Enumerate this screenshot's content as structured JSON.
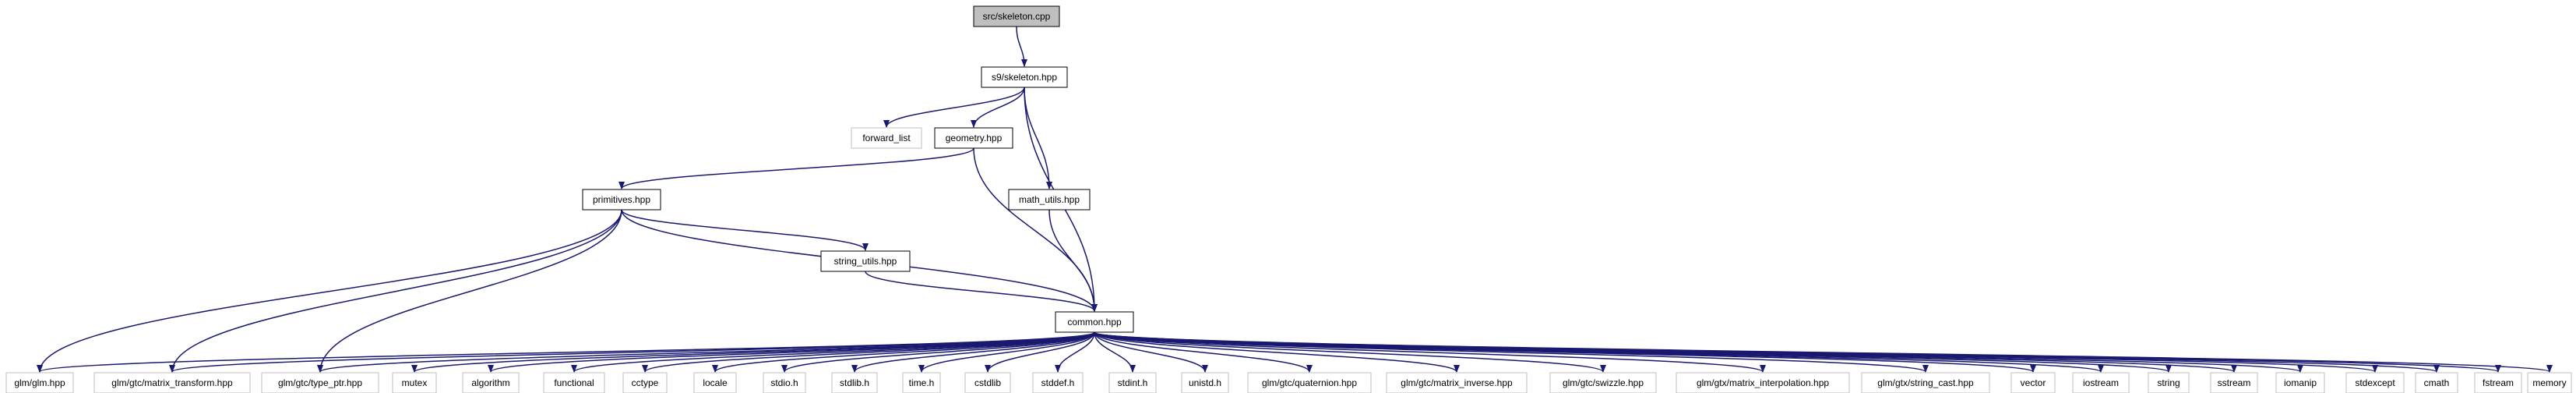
{
  "graph": {
    "colors": {
      "edge": "#191970",
      "node_border": "#000000",
      "external_border": "#bfbfbf",
      "root_fill": "#bfbfbf",
      "node_fill": "#ffffff"
    },
    "nodes": [
      {
        "id": "skeleton_cpp",
        "label": "src/skeleton.cpp",
        "kind": "root"
      },
      {
        "id": "s9skeleton",
        "label": "s9/skeleton.hpp",
        "kind": "local"
      },
      {
        "id": "forward_list",
        "label": "forward_list",
        "kind": "external"
      },
      {
        "id": "geometry",
        "label": "geometry.hpp",
        "kind": "local"
      },
      {
        "id": "primitives",
        "label": "primitives.hpp",
        "kind": "local"
      },
      {
        "id": "math_utils",
        "label": "math_utils.hpp",
        "kind": "local"
      },
      {
        "id": "string_utils",
        "label": "string_utils.hpp",
        "kind": "local"
      },
      {
        "id": "common",
        "label": "common.hpp",
        "kind": "local"
      },
      {
        "id": "glm",
        "label": "glm/glm.hpp",
        "kind": "external"
      },
      {
        "id": "matrix_transform",
        "label": "glm/gtc/matrix_transform.hpp",
        "kind": "external"
      },
      {
        "id": "type_ptr",
        "label": "glm/gtc/type_ptr.hpp",
        "kind": "external"
      },
      {
        "id": "mutex",
        "label": "mutex",
        "kind": "external"
      },
      {
        "id": "algorithm",
        "label": "algorithm",
        "kind": "external"
      },
      {
        "id": "functional",
        "label": "functional",
        "kind": "external"
      },
      {
        "id": "cctype",
        "label": "cctype",
        "kind": "external"
      },
      {
        "id": "locale",
        "label": "locale",
        "kind": "external"
      },
      {
        "id": "stdio",
        "label": "stdio.h",
        "kind": "external"
      },
      {
        "id": "stdlib",
        "label": "stdlib.h",
        "kind": "external"
      },
      {
        "id": "time",
        "label": "time.h",
        "kind": "external"
      },
      {
        "id": "cstdlib",
        "label": "cstdlib",
        "kind": "external"
      },
      {
        "id": "stddef",
        "label": "stddef.h",
        "kind": "external"
      },
      {
        "id": "stdint",
        "label": "stdint.h",
        "kind": "external"
      },
      {
        "id": "unistd",
        "label": "unistd.h",
        "kind": "external"
      },
      {
        "id": "quaternion",
        "label": "glm/gtc/quaternion.hpp",
        "kind": "external"
      },
      {
        "id": "matrix_inverse",
        "label": "glm/gtc/matrix_inverse.hpp",
        "kind": "external"
      },
      {
        "id": "swizzle",
        "label": "glm/gtc/swizzle.hpp",
        "kind": "external"
      },
      {
        "id": "matrix_interpolation",
        "label": "glm/gtx/matrix_interpolation.hpp",
        "kind": "external"
      },
      {
        "id": "string_cast",
        "label": "glm/gtx/string_cast.hpp",
        "kind": "external"
      },
      {
        "id": "vector",
        "label": "vector",
        "kind": "external"
      },
      {
        "id": "iostream",
        "label": "iostream",
        "kind": "external"
      },
      {
        "id": "string",
        "label": "string",
        "kind": "external"
      },
      {
        "id": "sstream",
        "label": "sstream",
        "kind": "external"
      },
      {
        "id": "iomanip",
        "label": "iomanip",
        "kind": "external"
      },
      {
        "id": "stdexcept",
        "label": "stdexcept",
        "kind": "external"
      },
      {
        "id": "cmath",
        "label": "cmath",
        "kind": "external"
      },
      {
        "id": "fstream",
        "label": "fstream",
        "kind": "external"
      },
      {
        "id": "memory",
        "label": "memory",
        "kind": "external"
      }
    ],
    "edges": [
      [
        "skeleton_cpp",
        "s9skeleton"
      ],
      [
        "s9skeleton",
        "forward_list"
      ],
      [
        "s9skeleton",
        "geometry"
      ],
      [
        "s9skeleton",
        "math_utils"
      ],
      [
        "s9skeleton",
        "common"
      ],
      [
        "geometry",
        "primitives"
      ],
      [
        "geometry",
        "common"
      ],
      [
        "math_utils",
        "common"
      ],
      [
        "primitives",
        "string_utils"
      ],
      [
        "primitives",
        "common"
      ],
      [
        "primitives",
        "glm"
      ],
      [
        "primitives",
        "matrix_transform"
      ],
      [
        "primitives",
        "type_ptr"
      ],
      [
        "string_utils",
        "common"
      ],
      [
        "common",
        "glm"
      ],
      [
        "common",
        "matrix_transform"
      ],
      [
        "common",
        "type_ptr"
      ],
      [
        "common",
        "mutex"
      ],
      [
        "common",
        "algorithm"
      ],
      [
        "common",
        "functional"
      ],
      [
        "common",
        "cctype"
      ],
      [
        "common",
        "locale"
      ],
      [
        "common",
        "stdio"
      ],
      [
        "common",
        "stdlib"
      ],
      [
        "common",
        "time"
      ],
      [
        "common",
        "cstdlib"
      ],
      [
        "common",
        "stddef"
      ],
      [
        "common",
        "stdint"
      ],
      [
        "common",
        "unistd"
      ],
      [
        "common",
        "quaternion"
      ],
      [
        "common",
        "matrix_inverse"
      ],
      [
        "common",
        "swizzle"
      ],
      [
        "common",
        "matrix_interpolation"
      ],
      [
        "common",
        "string_cast"
      ],
      [
        "common",
        "vector"
      ],
      [
        "common",
        "iostream"
      ],
      [
        "common",
        "string"
      ],
      [
        "common",
        "sstream"
      ],
      [
        "common",
        "iomanip"
      ],
      [
        "common",
        "stdexcept"
      ],
      [
        "common",
        "cmath"
      ],
      [
        "common",
        "fstream"
      ],
      [
        "common",
        "memory"
      ]
    ]
  }
}
